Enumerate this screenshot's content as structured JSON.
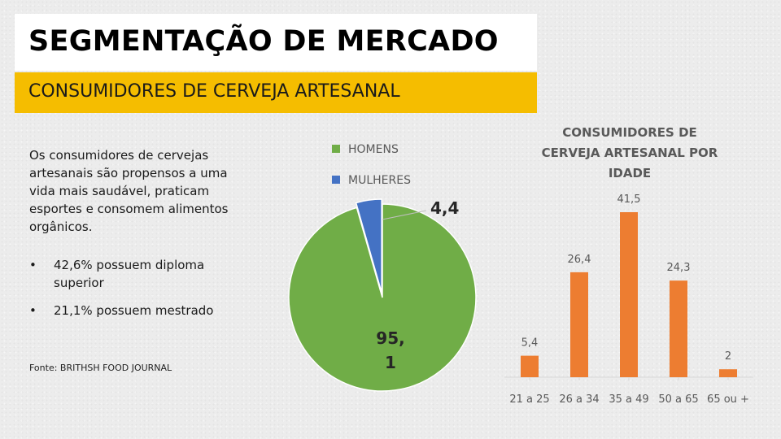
{
  "header": {
    "title": "SEGMENTAÇÃO DE MERCADO",
    "subtitle": "CONSUMIDORES DE CERVEJA ARTESANAL"
  },
  "content": {
    "paragraph": "Os consumidores de cervejas artesanais são propensos a uma vida mais saudável, praticam esportes e consomem alimentos orgânicos.",
    "bullets": [
      "42,6% possuem diploma superior",
      "21,1% possuem mestrado"
    ],
    "bullet_glyph": "•",
    "source": "Fonte: BRITHSH FOOD JOURNAL"
  },
  "colors": {
    "title_bg": "#ffffff",
    "subtitle_bg": "#f5bd00",
    "pie_homens": "#70ad47",
    "pie_mulheres": "#4472c4",
    "bar": "#ed7d31",
    "chart_title": "#595959",
    "label": "#595959"
  },
  "chart_data": [
    {
      "type": "pie",
      "title": "",
      "categories": [
        "HOMENS",
        "MULHERES"
      ],
      "values": [
        95.1,
        4.4
      ],
      "value_labels": [
        "95,\n1",
        "4,4"
      ],
      "legend": "top"
    },
    {
      "type": "bar",
      "title": "CONSUMIDORES DE CERVEJA ARTESANAL POR IDADE",
      "title_lines": [
        "CONSUMIDORES DE",
        "CERVEJA ARTESANAL POR",
        "IDADE"
      ],
      "categories": [
        "21 a 25",
        "26 a 34",
        "35 a 49",
        "50 a 65",
        "65 ou +"
      ],
      "values": [
        5.4,
        26.4,
        41.5,
        24.3,
        2
      ],
      "value_labels": [
        "5,4",
        "26,4",
        "41,5",
        "24,3",
        "2"
      ],
      "xlabel": "",
      "ylabel": "",
      "ylim": [
        0,
        41.5
      ],
      "grid": false
    }
  ]
}
